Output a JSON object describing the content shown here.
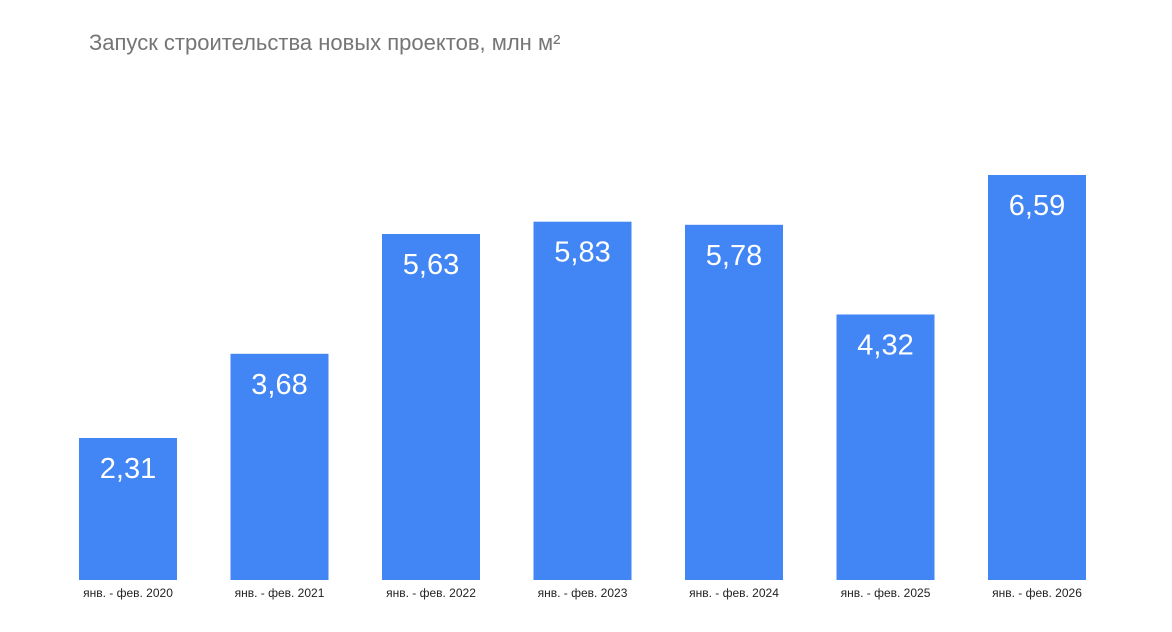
{
  "chart_data": {
    "type": "bar",
    "title": "Запуск строительства новых проектов, млн  м²",
    "categories": [
      "янв. - фев. 2020",
      "янв. - фев. 2021",
      "янв. - фев. 2022",
      "янв. - фев. 2023",
      "янв. - фев. 2024",
      "янв. - фев. 2025",
      "янв. - фев. 2026"
    ],
    "values": [
      2.31,
      3.68,
      5.63,
      5.83,
      5.78,
      4.32,
      6.59
    ],
    "value_labels": [
      "2,31",
      "3,68",
      "5,63",
      "5,83",
      "5,78",
      "4,32",
      "6,59"
    ],
    "xlabel": "",
    "ylabel": "",
    "ylim": [
      0,
      6.59
    ],
    "grid": false,
    "legend": "none",
    "bar_color": "#4285F4"
  }
}
